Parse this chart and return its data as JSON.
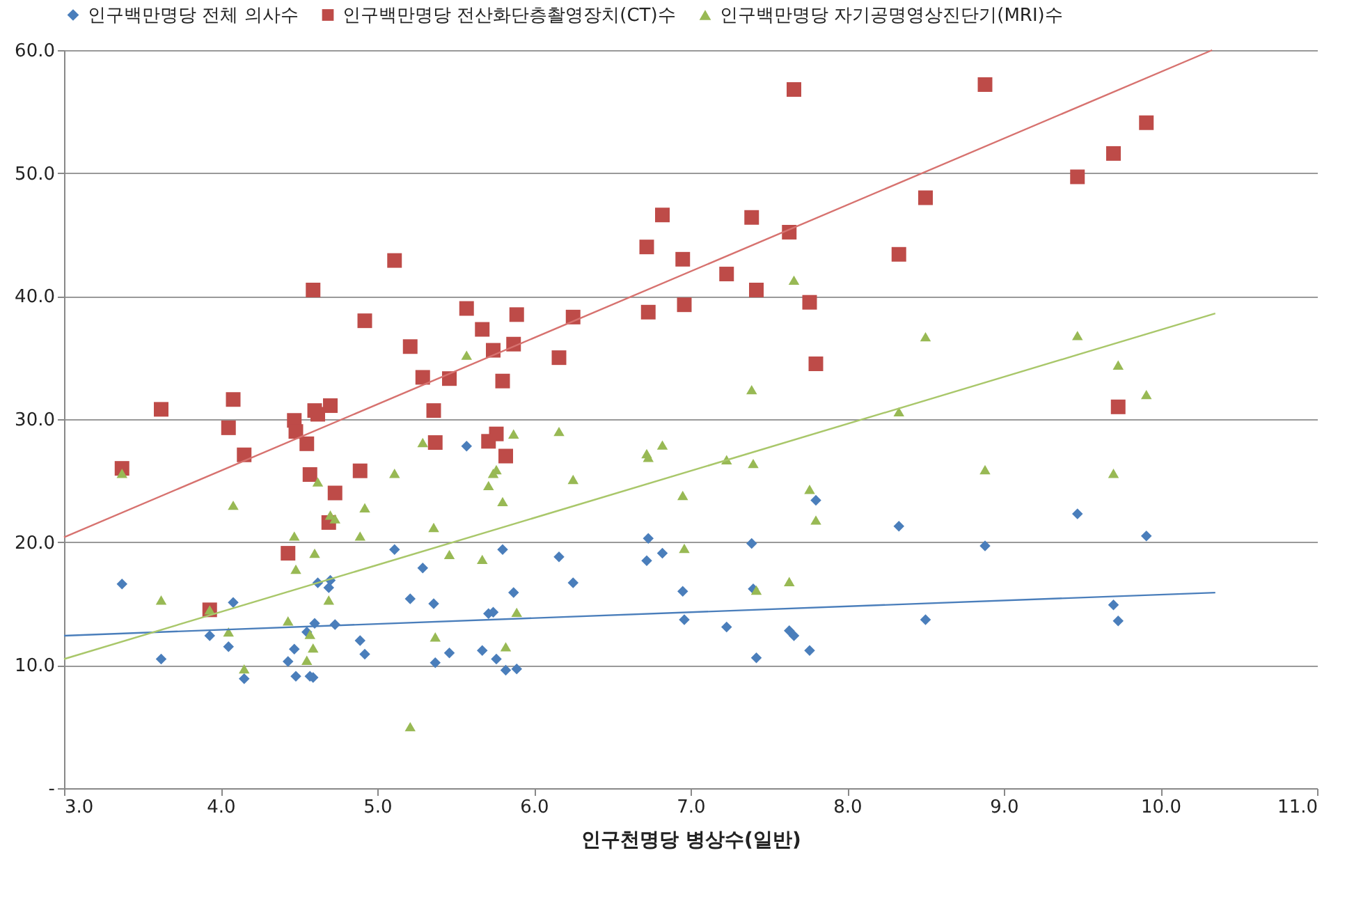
{
  "chart_data": {
    "type": "scatter",
    "xlabel": "인구천명당 병상수(일반)",
    "xlim": [
      3,
      11
    ],
    "ylim": [
      0,
      60
    ],
    "xticks": [
      {
        "value": 3,
        "label": "3.0"
      },
      {
        "value": 4,
        "label": "4.0"
      },
      {
        "value": 5,
        "label": "5.0"
      },
      {
        "value": 6,
        "label": "6.0"
      },
      {
        "value": 7,
        "label": "7.0"
      },
      {
        "value": 8,
        "label": "8.0"
      },
      {
        "value": 9,
        "label": "9.0"
      },
      {
        "value": 10,
        "label": "10.0"
      },
      {
        "value": 11,
        "label": "11.0"
      }
    ],
    "yticks": [
      {
        "value": 0,
        "label": "-"
      },
      {
        "value": 10,
        "label": "10.0"
      },
      {
        "value": 20,
        "label": "20.0"
      },
      {
        "value": 30,
        "label": "30.0"
      },
      {
        "value": 40,
        "label": "40.0"
      },
      {
        "value": 50,
        "label": "50.0"
      },
      {
        "value": 60,
        "label": "60.0"
      }
    ],
    "grid": "y",
    "legend": "top",
    "series": [
      {
        "name": "인구백만명당 전체 의사수",
        "marker": "diamond",
        "color": "#4a7ebb",
        "x": [
          3.37,
          3.62,
          3.93,
          4.05,
          4.08,
          4.15,
          4.43,
          4.47,
          4.48,
          4.55,
          4.57,
          4.59,
          4.6,
          4.62,
          4.69,
          4.7,
          4.73,
          4.89,
          4.92,
          5.11,
          5.21,
          5.29,
          5.36,
          5.37,
          5.46,
          5.57,
          5.67,
          5.71,
          5.74,
          5.76,
          5.8,
          5.82,
          5.87,
          5.89,
          6.16,
          6.25,
          6.72,
          6.73,
          6.82,
          6.95,
          6.96,
          7.23,
          7.39,
          7.4,
          7.42,
          7.63,
          7.66,
          7.76,
          7.8,
          8.33,
          8.5,
          8.88,
          9.47,
          9.7,
          9.73,
          9.91
        ],
        "values": [
          16.6,
          10.5,
          12.4,
          11.5,
          15.1,
          8.9,
          10.3,
          11.3,
          9.1,
          12.7,
          9.1,
          9.0,
          13.4,
          16.7,
          16.3,
          16.9,
          13.3,
          12.0,
          10.9,
          19.4,
          15.4,
          17.9,
          15.0,
          10.2,
          11.0,
          27.8,
          11.2,
          14.2,
          14.3,
          10.5,
          19.4,
          9.6,
          15.9,
          9.7,
          18.8,
          16.7,
          18.5,
          20.3,
          19.1,
          16.0,
          13.7,
          13.1,
          19.9,
          16.2,
          10.6,
          12.8,
          12.4,
          11.2,
          23.4,
          21.3,
          13.7,
          19.7,
          22.3,
          14.9,
          13.6,
          20.5
        ]
      },
      {
        "name": "인구백만명당 전산화단층촬영장치(CT)수",
        "marker": "square",
        "color": "#be4b48",
        "x": [
          3.37,
          3.62,
          3.93,
          4.05,
          4.08,
          4.15,
          4.43,
          4.47,
          4.48,
          4.55,
          4.57,
          4.59,
          4.6,
          4.62,
          4.69,
          4.7,
          4.73,
          4.89,
          4.92,
          5.11,
          5.21,
          5.29,
          5.36,
          5.37,
          5.46,
          5.57,
          5.67,
          5.71,
          5.74,
          5.76,
          5.8,
          5.82,
          5.87,
          5.89,
          6.16,
          6.25,
          6.72,
          6.73,
          6.82,
          6.95,
          6.96,
          7.23,
          7.39,
          7.42,
          7.63,
          7.66,
          7.76,
          7.8,
          8.33,
          8.5,
          8.88,
          9.47,
          9.7,
          9.73,
          9.91
        ],
        "values": [
          26.0,
          30.8,
          14.5,
          29.3,
          31.6,
          27.1,
          19.1,
          29.9,
          29.0,
          28.0,
          25.5,
          40.5,
          30.7,
          30.4,
          21.6,
          31.1,
          24.0,
          25.8,
          38.0,
          42.9,
          35.9,
          33.4,
          30.7,
          28.1,
          33.3,
          39.0,
          37.3,
          28.2,
          35.6,
          28.8,
          33.1,
          27.0,
          36.1,
          38.5,
          35.0,
          38.3,
          44.0,
          38.7,
          46.6,
          43.0,
          39.3,
          41.8,
          46.4,
          40.5,
          45.2,
          56.8,
          39.5,
          34.5,
          43.4,
          48.0,
          57.2,
          49.7,
          51.6,
          31.0,
          54.1
        ]
      },
      {
        "name": "인구백만명당 자기공명영상진단기(MRI)수",
        "marker": "triangle",
        "color": "#98b954",
        "x": [
          3.37,
          3.62,
          3.93,
          4.05,
          4.08,
          4.15,
          4.43,
          4.47,
          4.48,
          4.55,
          4.57,
          4.59,
          4.6,
          4.62,
          4.69,
          4.7,
          4.73,
          4.89,
          4.92,
          5.11,
          5.21,
          5.29,
          5.36,
          5.37,
          5.46,
          5.57,
          5.67,
          5.71,
          5.74,
          5.76,
          5.8,
          5.82,
          5.87,
          5.89,
          6.16,
          6.25,
          6.72,
          6.73,
          6.82,
          6.95,
          6.96,
          7.23,
          7.39,
          7.4,
          7.42,
          7.63,
          7.66,
          7.76,
          7.8,
          8.33,
          8.5,
          8.88,
          9.47,
          9.7,
          9.73,
          9.91
        ],
        "values": [
          25.6,
          15.3,
          14.5,
          12.7,
          23.0,
          9.7,
          13.6,
          20.5,
          17.8,
          10.4,
          12.5,
          11.4,
          19.1,
          24.9,
          15.3,
          22.2,
          21.9,
          20.5,
          22.8,
          25.6,
          5.0,
          28.1,
          21.2,
          12.3,
          19.0,
          35.2,
          18.6,
          24.6,
          25.6,
          25.9,
          23.3,
          11.5,
          28.8,
          14.3,
          29.0,
          25.1,
          27.2,
          26.9,
          27.9,
          23.8,
          19.5,
          26.7,
          32.4,
          26.4,
          16.1,
          16.8,
          41.3,
          24.3,
          21.8,
          30.6,
          36.7,
          25.9,
          36.8,
          25.6,
          34.4,
          32.0
        ]
      },
      {
        "type": "line",
        "color": "#4a7ebb",
        "x": [
          3.0,
          10.35
        ],
        "values": [
          12.4,
          15.9
        ]
      },
      {
        "type": "line",
        "color": "#d7726f",
        "x": [
          3.0,
          10.33
        ],
        "values": [
          20.4,
          60.0
        ]
      },
      {
        "type": "line",
        "color": "#a9c76a",
        "x": [
          3.0,
          10.35
        ],
        "values": [
          10.5,
          38.6
        ]
      }
    ]
  }
}
